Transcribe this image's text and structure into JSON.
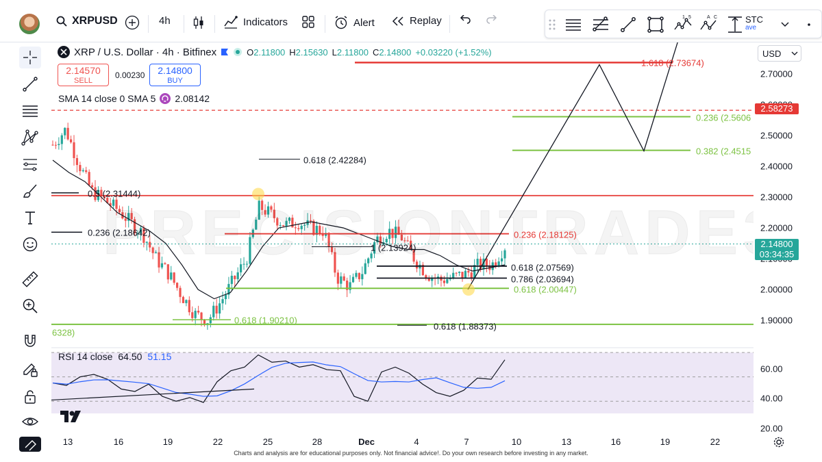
{
  "header": {
    "symbol": "XRPUSD",
    "interval": "4h",
    "indicators_label": "Indicators",
    "alert_label": "Alert",
    "replay_label": "Replay",
    "drawbar_partial_text": "STC",
    "drawbar_partial_sub": "ave"
  },
  "legend": {
    "title": "XRP / U.S. Dollar · 4h · Bitfinex",
    "o_label": "O",
    "o_value": "2.11800",
    "h_label": "H",
    "h_value": "2.15630",
    "l_label": "L",
    "l_value": "2.11800",
    "c_label": "C",
    "c_value": "2.14800",
    "change": "+0.03220 (+1.52%)",
    "sell_price": "2.14570",
    "sell_label": "SELL",
    "spread": "0.00230",
    "buy_price": "2.14800",
    "buy_label": "BUY"
  },
  "sma": {
    "label": "SMA 14 close 0 SMA 5",
    "value": "2.08142"
  },
  "rsi": {
    "label": "RSI 14 close",
    "value1": "64.50",
    "value2": "51.15"
  },
  "currency": "USD",
  "price_axis": {
    "ticks": [
      "2.70000",
      "2.60000",
      "2.50000",
      "2.40000",
      "2.30000",
      "2.20000",
      "2.10000",
      "2.00000",
      "1.90000"
    ],
    "tag_red": "2.58273",
    "tag_current": "2.14800",
    "tag_countdown": "03:34:35"
  },
  "rsi_axis": {
    "ticks": [
      "60.00",
      "40.00",
      "20.00"
    ]
  },
  "x_axis": {
    "labels": [
      "13",
      "16",
      "19",
      "22",
      "25",
      "28",
      "Dec",
      "4",
      "7",
      "10",
      "13",
      "16",
      "19",
      "22"
    ]
  },
  "fib_labels": {
    "f1618": "1.618 (2.73674)",
    "f236_top": "0.236 (2.5606",
    "f382": "0.382 (2.4515",
    "f618_a": "0.618 (2.42284)",
    "f05": "0.5 (2.31444)",
    "f236_left": "0.236 (2.18642)",
    "f236_mid": "0.236 (2.18125)",
    "f1": "1 (2.13924)",
    "f618_b": "0.618 (2.07569)",
    "f786": "0.786 (2.03694)",
    "f618_c": "0.618 (2.00447)",
    "f618_d": "0.618 (1.90210)",
    "f618_e": "0.618 (1.88373)",
    "fleft": "6328)"
  },
  "watermark": "PRECISIONTRADE3",
  "disclaimer": "Charts and analysis are for educational purposes only. Not financial advice!. Do your own research before investing in any market.",
  "colors": {
    "red": "#e53935",
    "green": "#7cc242",
    "blue": "#2962ff",
    "up": "#26a69a",
    "down": "#ef5350",
    "rsi_bg": "#ede7f6"
  },
  "chart_data": {
    "type": "candlestick",
    "symbol": "XRP / U.S. Dollar",
    "interval": "4h",
    "ylim": [
      1.75,
      2.8
    ],
    "x": [
      "13",
      "16",
      "19",
      "22",
      "25",
      "28",
      "Dec",
      "4",
      "7",
      "10",
      "13",
      "16",
      "19",
      "22"
    ],
    "close_path": [
      2.47,
      2.52,
      2.41,
      2.32,
      2.29,
      2.26,
      2.22,
      2.18,
      2.1,
      2.05,
      1.98,
      1.92,
      1.9,
      1.96,
      2.03,
      2.1,
      2.27,
      2.24,
      2.21,
      2.22,
      2.2,
      2.19,
      2.04,
      2.01,
      2.06,
      2.16,
      2.19,
      2.17,
      2.1,
      2.05,
      2.03,
      2.04,
      2.05,
      2.08,
      2.08,
      2.14
    ],
    "sma_path": [
      2.42,
      2.38,
      2.35,
      2.3,
      2.25,
      2.22,
      2.19,
      2.15,
      2.08,
      2.0,
      1.97,
      1.99,
      2.06,
      2.14,
      2.2,
      2.21,
      2.22,
      2.21,
      2.2,
      2.18,
      2.16,
      2.14,
      2.13,
      2.13,
      2.11,
      2.08,
      2.06,
      2.07,
      2.08
    ],
    "projection_path": [
      2.0,
      2.73,
      2.45,
      2.88
    ],
    "current_price": 2.148,
    "rsi": {
      "ylim": [
        20,
        70
      ],
      "levels": [
        30,
        50,
        70
      ],
      "values": [
        45,
        43,
        50,
        52,
        48,
        40,
        38,
        44,
        34,
        30,
        33,
        29,
        46,
        55,
        58,
        68,
        62,
        63,
        58,
        60,
        56,
        55,
        34,
        30,
        54,
        58,
        53,
        44,
        37,
        34,
        39,
        49,
        48,
        64
      ]
    }
  }
}
